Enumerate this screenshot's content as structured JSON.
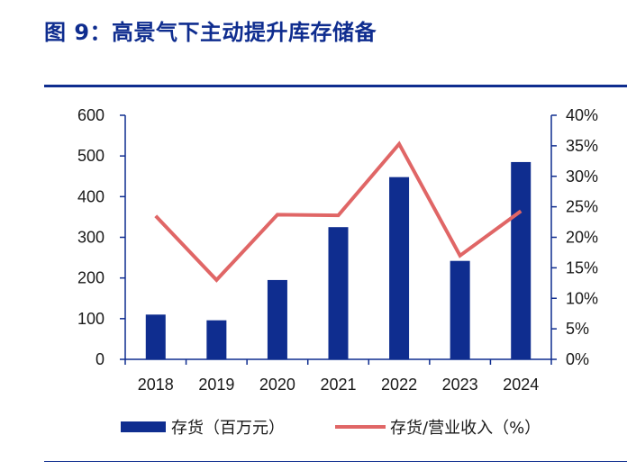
{
  "figure": {
    "title": "图 9：高景气下主动提升库存储备"
  },
  "colors": {
    "bar": "#0f2d8f",
    "line": "#e06666",
    "title": "#0f2d8f",
    "axis": "#0f2d8f"
  },
  "chart_data": {
    "type": "bar",
    "categories": [
      "2018",
      "2019",
      "2020",
      "2021",
      "2022",
      "2023",
      "2024"
    ],
    "series": [
      {
        "name": "存货（百万元）",
        "type": "bar",
        "axis": "left",
        "values": [
          110,
          96,
          195,
          325,
          448,
          242,
          485
        ]
      },
      {
        "name": "存货/营业收入（%）",
        "type": "line",
        "axis": "right",
        "values": [
          23.5,
          13,
          23.7,
          23.6,
          35.3,
          17,
          24.3
        ]
      }
    ],
    "y_left": {
      "ylim": [
        0,
        600
      ],
      "ticks": [
        "600",
        "500",
        "400",
        "300",
        "200",
        "100",
        "0"
      ]
    },
    "y_right": {
      "ylim": [
        0,
        40
      ],
      "ticks": [
        "40%",
        "35%",
        "30%",
        "25%",
        "20%",
        "15%",
        "10%",
        "5%",
        "0%"
      ]
    },
    "legend": "bottom",
    "grid": false
  }
}
